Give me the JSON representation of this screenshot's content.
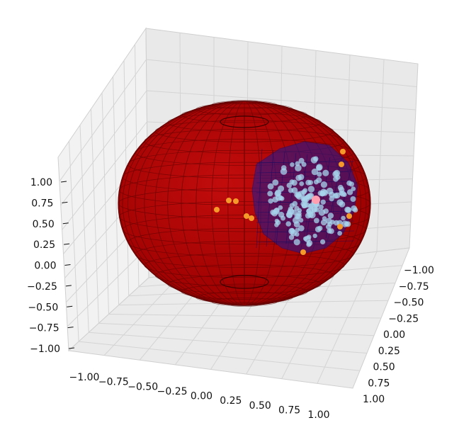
{
  "chart_data": {
    "type": "scatter",
    "projection": "3d",
    "title": "",
    "xlabel": "",
    "ylabel": "",
    "zlabel": "",
    "grid": true,
    "xlim": [
      -1.0,
      1.0
    ],
    "ylim": [
      -1.0,
      1.0
    ],
    "zlim": [
      -1.0,
      1.0
    ],
    "x_ticks": [
      "−1.00",
      "−0.75",
      "−0.50",
      "−0.25",
      "0.00",
      "0.25",
      "0.50",
      "0.75",
      "1.00"
    ],
    "y_ticks": [
      "−1.00",
      "−0.75",
      "−0.50",
      "−0.25",
      "0.00",
      "0.25",
      "0.50",
      "0.75",
      "1.00"
    ],
    "z_ticks": [
      "1.00",
      "0.75",
      "0.50",
      "0.25",
      "0.00",
      "−0.25",
      "−0.50",
      "−0.75",
      "−1.00"
    ],
    "surfaces": [
      {
        "kind": "unit-sphere-wireframe",
        "color": "#b00000"
      },
      {
        "kind": "spherical-cap-patch",
        "color": "#1a1a9a"
      }
    ],
    "series": [
      {
        "color": "#a8d4ec",
        "role": "cluster"
      },
      {
        "color": "#f59a2a",
        "role": "outliers"
      },
      {
        "color": "#ff9fb0",
        "role": "center"
      }
    ],
    "colors": {
      "sphere": "#b00000",
      "patch": "#1a1a9a",
      "cluster": "#a8d4ec",
      "outlier": "#f59a2a",
      "center": "#ff9fb0"
    }
  }
}
